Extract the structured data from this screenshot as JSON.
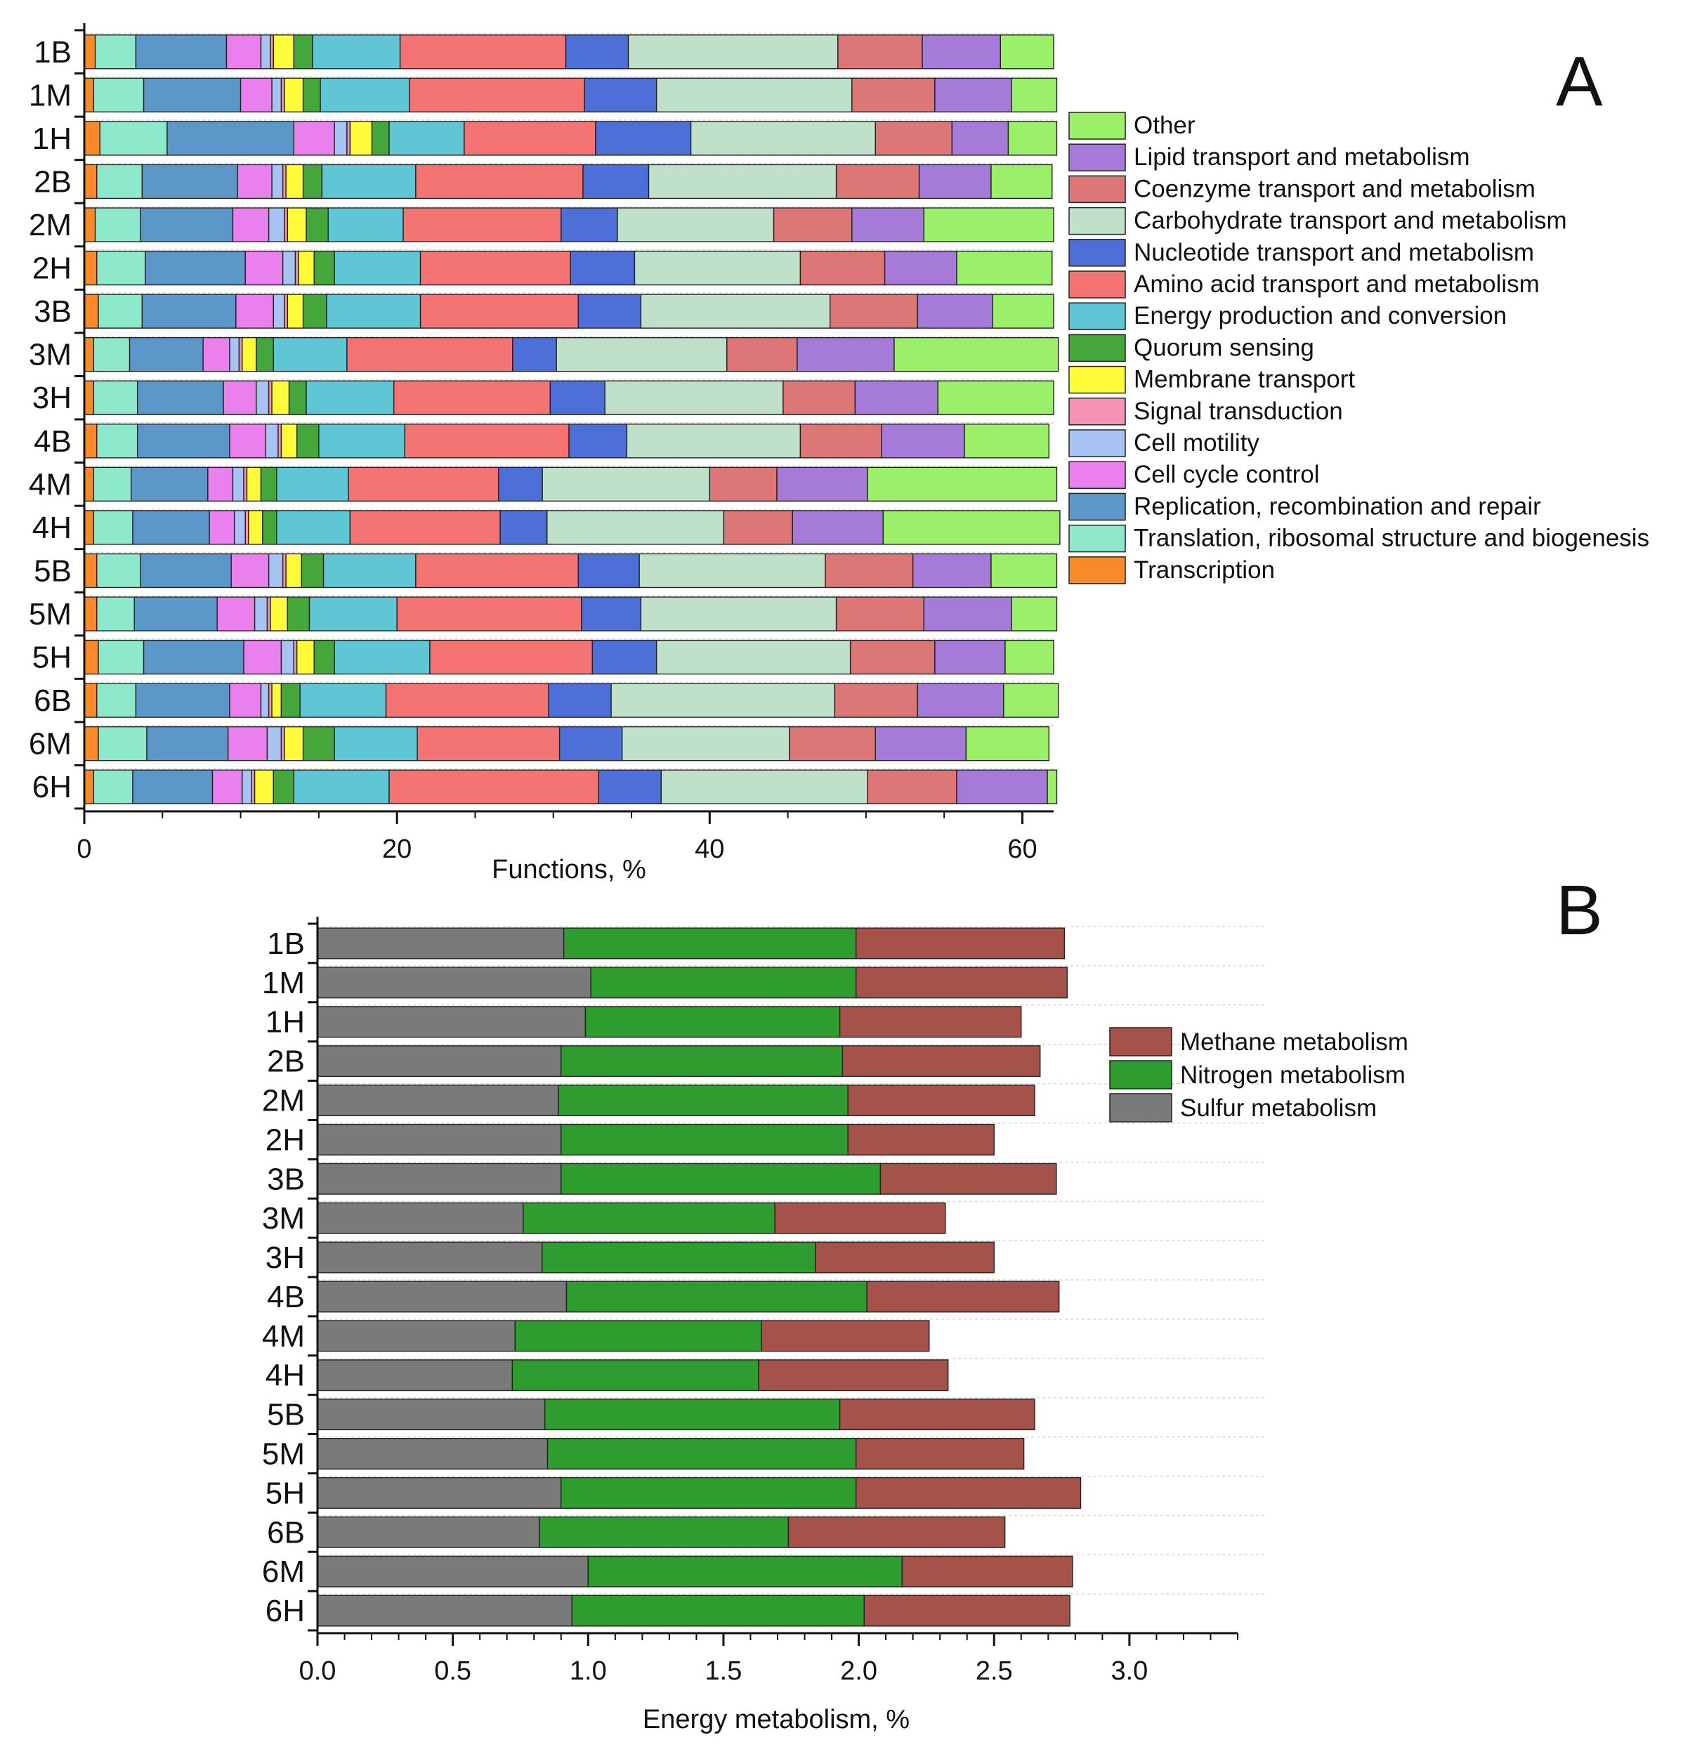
{
  "figure": {
    "panel_a_label": "A",
    "panel_b_label": "B"
  },
  "chart_data": [
    {
      "type": "bar",
      "orientation": "horizontal",
      "stacked": true,
      "title": "",
      "xlabel": "Functions, %",
      "ylabel": "",
      "xlim": [
        0,
        62
      ],
      "xticks": [
        0,
        20,
        40,
        60
      ],
      "legend_position": "right",
      "categories": [
        "1B",
        "1M",
        "1H",
        "2B",
        "2M",
        "2H",
        "3B",
        "3M",
        "3H",
        "4B",
        "4M",
        "4H",
        "5B",
        "5M",
        "5H",
        "6B",
        "6M",
        "6H"
      ],
      "series": [
        {
          "name": "Transcription",
          "color": "#f88a2a",
          "values": [
            0.7,
            0.6,
            1.0,
            0.8,
            0.7,
            0.8,
            0.9,
            0.6,
            0.6,
            0.8,
            0.6,
            0.6,
            0.8,
            0.8,
            0.9,
            0.8,
            0.9,
            0.6
          ]
        },
        {
          "name": "Translation, ribosomal structure and biogenesis",
          "color": "#8ee8cc",
          "values": [
            2.6,
            3.2,
            4.3,
            2.9,
            2.9,
            3.1,
            2.8,
            2.3,
            2.8,
            2.6,
            2.4,
            2.5,
            2.8,
            2.4,
            2.9,
            2.5,
            3.1,
            2.5
          ]
        },
        {
          "name": "Replication, recombination and repair",
          "color": "#5b97c9",
          "values": [
            5.8,
            6.2,
            8.1,
            6.1,
            5.9,
            6.4,
            6.0,
            4.7,
            5.5,
            5.9,
            4.9,
            4.9,
            5.8,
            5.3,
            6.4,
            6.0,
            5.2,
            5.1
          ]
        },
        {
          "name": "Cell cycle control",
          "color": "#ea80ee",
          "values": [
            2.2,
            2.0,
            2.6,
            2.2,
            2.3,
            2.4,
            2.4,
            1.7,
            2.1,
            2.3,
            1.6,
            1.6,
            2.4,
            2.4,
            2.4,
            2.0,
            2.5,
            1.9
          ]
        },
        {
          "name": "Cell motility",
          "color": "#a8c2f2",
          "values": [
            0.6,
            0.6,
            0.8,
            0.7,
            1.0,
            0.8,
            0.7,
            0.6,
            0.8,
            0.8,
            0.7,
            0.7,
            0.9,
            0.8,
            0.8,
            0.5,
            0.9,
            0.6
          ]
        },
        {
          "name": "Signal transduction",
          "color": "#f493b4",
          "values": [
            0.2,
            0.2,
            0.2,
            0.2,
            0.2,
            0.2,
            0.2,
            0.2,
            0.2,
            0.2,
            0.2,
            0.2,
            0.2,
            0.2,
            0.2,
            0.2,
            0.2,
            0.2
          ]
        },
        {
          "name": "Membrane transport",
          "color": "#fffb3a",
          "values": [
            1.3,
            1.2,
            1.4,
            1.1,
            1.2,
            1.0,
            1.0,
            0.9,
            1.1,
            1.0,
            0.9,
            0.9,
            1.0,
            1.1,
            1.1,
            0.6,
            1.2,
            1.2
          ]
        },
        {
          "name": "Quorum sensing",
          "color": "#45a63c",
          "values": [
            1.2,
            1.1,
            1.1,
            1.2,
            1.4,
            1.3,
            1.5,
            1.1,
            1.1,
            1.4,
            1.0,
            0.9,
            1.4,
            1.4,
            1.3,
            1.2,
            2.0,
            1.3
          ]
        },
        {
          "name": "Energy production and conversion",
          "color": "#5fc6d5",
          "values": [
            5.6,
            5.7,
            4.8,
            6.0,
            4.8,
            5.5,
            6.0,
            4.7,
            5.6,
            5.5,
            4.6,
            4.7,
            5.9,
            5.6,
            6.1,
            5.5,
            5.3,
            6.1
          ]
        },
        {
          "name": "Amino acid transport and metabolism",
          "color": "#f47474",
          "values": [
            10.6,
            11.2,
            8.4,
            10.7,
            10.1,
            9.6,
            10.1,
            10.6,
            10.0,
            10.5,
            9.6,
            9.6,
            10.4,
            11.8,
            10.4,
            10.4,
            9.1,
            13.4
          ]
        },
        {
          "name": "Nucleotide transport and metabolism",
          "color": "#4f6fd8",
          "values": [
            4.0,
            4.6,
            6.1,
            4.2,
            3.6,
            4.1,
            4.0,
            2.8,
            3.5,
            3.7,
            2.8,
            3.0,
            3.9,
            3.8,
            4.1,
            4.0,
            4.0,
            4.0
          ]
        },
        {
          "name": "Carbohydrate transport and metabolism",
          "color": "#bfe0c9",
          "values": [
            13.4,
            12.5,
            11.8,
            12.0,
            10.0,
            10.6,
            12.1,
            10.9,
            11.4,
            11.1,
            10.7,
            11.3,
            11.9,
            12.5,
            12.4,
            14.3,
            10.7,
            13.2
          ]
        },
        {
          "name": "Coenzyme transport and metabolism",
          "color": "#dd7676",
          "values": [
            5.4,
            5.3,
            4.9,
            5.3,
            5.0,
            5.4,
            5.6,
            4.5,
            4.6,
            5.2,
            4.3,
            4.4,
            5.6,
            5.6,
            5.4,
            5.3,
            5.5,
            5.7
          ]
        },
        {
          "name": "Lipid transport and metabolism",
          "color": "#a67ad8",
          "values": [
            5.0,
            4.9,
            3.6,
            4.6,
            4.6,
            4.6,
            4.8,
            6.2,
            5.3,
            5.3,
            5.8,
            5.8,
            5.0,
            5.6,
            4.5,
            5.5,
            5.8,
            5.8
          ]
        },
        {
          "name": "Other",
          "color": "#9cef68",
          "values": [
            3.4,
            2.9,
            3.1,
            3.9,
            8.3,
            6.1,
            3.9,
            10.5,
            7.4,
            5.4,
            12.1,
            11.3,
            4.2,
            2.9,
            3.1,
            3.5,
            5.3,
            0.6
          ]
        }
      ]
    },
    {
      "type": "bar",
      "orientation": "horizontal",
      "stacked": true,
      "title": "",
      "xlabel": "Energy metabolism, %",
      "ylabel": "",
      "xlim": [
        0,
        3.4
      ],
      "xticks": [
        "0.0",
        "0.5",
        "1.0",
        "1.5",
        "2.0",
        "2.5",
        "3.0"
      ],
      "legend_position": "right",
      "categories": [
        "1B",
        "1M",
        "1H",
        "2B",
        "2M",
        "2H",
        "3B",
        "3M",
        "3H",
        "4B",
        "4M",
        "4H",
        "5B",
        "5M",
        "5H",
        "6B",
        "6M",
        "6H"
      ],
      "series": [
        {
          "name": "Sulfur metabolism",
          "color": "#7a7a7a",
          "values": [
            0.91,
            1.01,
            0.99,
            0.9,
            0.89,
            0.9,
            0.9,
            0.76,
            0.83,
            0.92,
            0.73,
            0.72,
            0.84,
            0.85,
            0.9,
            0.82,
            1.0,
            0.94
          ]
        },
        {
          "name": "Nitrogen metabolism",
          "color": "#2e9c2e",
          "values": [
            1.08,
            0.98,
            0.94,
            1.04,
            1.07,
            1.06,
            1.18,
            0.93,
            1.01,
            1.11,
            0.91,
            0.91,
            1.09,
            1.14,
            1.09,
            0.92,
            1.16,
            1.08
          ]
        },
        {
          "name": "Methane metabolism",
          "color": "#a5534a",
          "values": [
            0.77,
            0.78,
            0.67,
            0.73,
            0.69,
            0.54,
            0.65,
            0.63,
            0.66,
            0.71,
            0.62,
            0.7,
            0.72,
            0.62,
            0.83,
            0.8,
            0.63,
            0.76
          ]
        }
      ]
    }
  ]
}
